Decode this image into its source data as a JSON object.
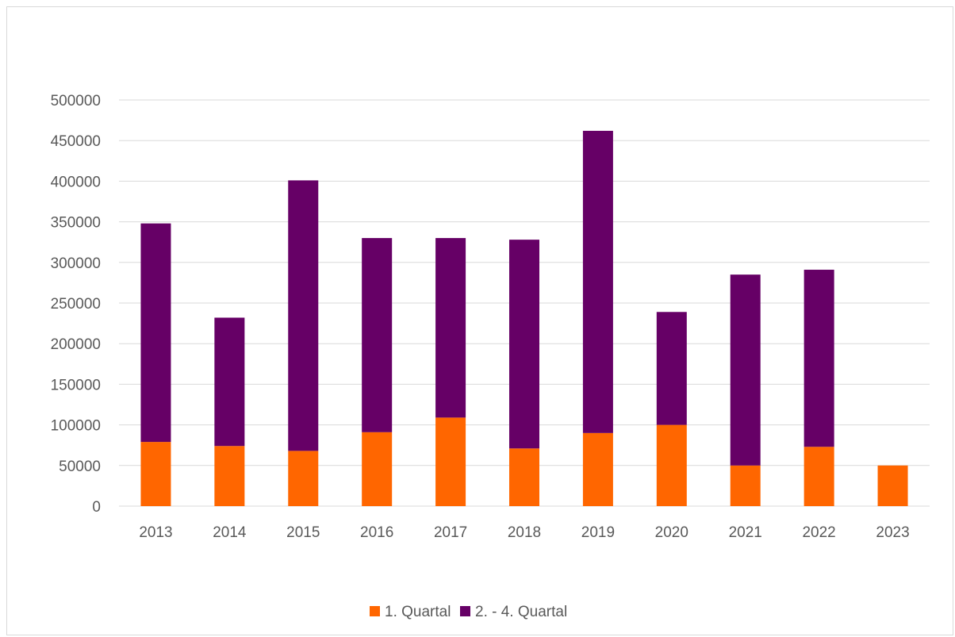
{
  "chart_data": {
    "type": "bar",
    "stacked": true,
    "title": "",
    "xlabel": "",
    "ylabel": "",
    "categories": [
      "2013",
      "2014",
      "2015",
      "2016",
      "2017",
      "2018",
      "2019",
      "2020",
      "2021",
      "2022",
      "2023"
    ],
    "series": [
      {
        "name": "1. Quartal",
        "color": "#ff6600",
        "values": [
          79000,
          74000,
          68000,
          91000,
          109000,
          71000,
          90000,
          100000,
          50000,
          73000,
          50000
        ]
      },
      {
        "name": "2. - 4. Quartal",
        "color": "#660066",
        "values": [
          269000,
          158000,
          333000,
          239000,
          221000,
          257000,
          372000,
          139000,
          235000,
          218000,
          0
        ]
      }
    ],
    "ylim": [
      0,
      500000
    ],
    "yticks": [
      "0",
      "50000",
      "100000",
      "150000",
      "200000",
      "250000",
      "300000",
      "350000",
      "400000",
      "450000",
      "500000"
    ],
    "grid": true,
    "gridColor": "#d9d9d9",
    "legend_position": "bottom"
  }
}
